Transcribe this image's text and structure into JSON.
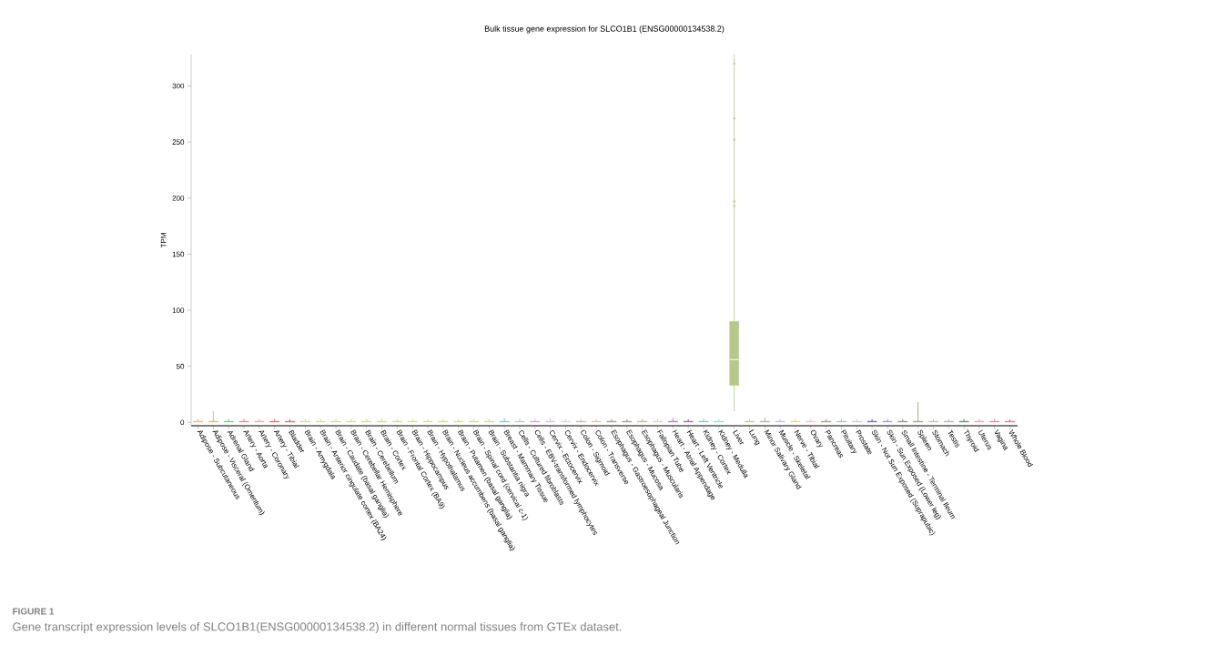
{
  "chart_data": {
    "type": "box",
    "title": "Bulk tissue gene expression for SLCO1B1 (ENSG00000134538.2)",
    "ylabel": "TPM",
    "annotations": [
      "FIGURE 1",
      "Gene transcript expression levels of SLCO1B1(ENSG00000134538.2) in different normal tissues from GTEx dataset."
    ],
    "categories": [
      "Adipose - Subcutaneous",
      "Adipose - Visceral (Omentum)",
      "Adrenal Gland",
      "Artery - Aorta",
      "Artery - Coronary",
      "Artery - Tibial",
      "Bladder",
      "Brain - Amygdala",
      "Brain - Anterior cingulate cortex (BA24)",
      "Brain - Caudate (basal ganglia)",
      "Brain - Cerebellar Hemisphere",
      "Brain - Cerebellum",
      "Brain - Cortex",
      "Brain - Frontal Cortex (BA9)",
      "Brain - Hippocampus",
      "Brain - Hypothalamus",
      "Brain - Nucleus accumbens (basal ganglia)",
      "Brain - Putamen (basal ganglia)",
      "Brain - Spinal cord (cervical c-1)",
      "Brain - Substantia nigra",
      "Breast - Mammary Tissue",
      "Cells - Cultured fibroblasts",
      "Cells - EBV-transformed lymphocytes",
      "Cervix - Ectocervix",
      "Cervix - Endocervix",
      "Colon - Sigmoid",
      "Colon - Transverse",
      "Esophagus - Gastroesophageal Junction",
      "Esophagus - Mucosa",
      "Esophagus - Muscularis",
      "Fallopian Tube",
      "Heart - Atrial Appendage",
      "Heart - Left Ventricle",
      "Kidney - Cortex",
      "Kidney - Medulla",
      "Liver",
      "Lung",
      "Minor Salivary Gland",
      "Muscle - Skeletal",
      "Nerve - Tibial",
      "Ovary",
      "Pancreas",
      "Pituitary",
      "Prostate",
      "Skin - Not Sun Exposed (Suprapubic)",
      "Skin - Sun Exposed (Lower leg)",
      "Small Intestine - Terminal Ileum",
      "Spleen",
      "Stomach",
      "Testis",
      "Thyroid",
      "Uterus",
      "Vagina",
      "Whole Blood"
    ],
    "colors": [
      "#f4a460",
      "#f0a030",
      "#4fc35c",
      "#e46a6a",
      "#e89a8a",
      "#e04040",
      "#d04040",
      "#d8d84a",
      "#d8d84a",
      "#d8d84a",
      "#d8d84a",
      "#d8d84a",
      "#d8d84a",
      "#d8d84a",
      "#d8d84a",
      "#d8d84a",
      "#d8d84a",
      "#d8d84a",
      "#d8d84a",
      "#d8d84a",
      "#50c8d0",
      "#a0c0d0",
      "#e080e0",
      "#d8b0d8",
      "#e8c8c8",
      "#c8a880",
      "#e0b880",
      "#a08060",
      "#a08060",
      "#c8a070",
      "#e0c8c8",
      "#b050c8",
      "#8040a0",
      "#40c8c0",
      "#60e0e0",
      "#b5c98a",
      "#a8d060",
      "#90b080",
      "#b0b0e0",
      "#e8d040",
      "#f0b0c0",
      "#a08050",
      "#90c090",
      "#c0c0c0",
      "#4040d0",
      "#8080e0",
      "#708060",
      "#909070",
      "#c0b090",
      "#a0a0a0",
      "#308040",
      "#f080c0",
      "#f06080",
      "#f04080"
    ],
    "boxes": [
      {
        "low": 0,
        "q1": 0,
        "median": 0,
        "q3": 1,
        "high": 3
      },
      {
        "low": 0,
        "q1": 0,
        "median": 0,
        "q3": 1,
        "high": 10
      },
      {
        "low": 0,
        "q1": 0,
        "median": 0,
        "q3": 1,
        "high": 3
      },
      {
        "low": 0,
        "q1": 0,
        "median": 0,
        "q3": 1,
        "high": 3
      },
      {
        "low": 0,
        "q1": 0,
        "median": 0,
        "q3": 1,
        "high": 3
      },
      {
        "low": 0,
        "q1": 0,
        "median": 0,
        "q3": 1,
        "high": 3
      },
      {
        "low": 0,
        "q1": 0,
        "median": 0,
        "q3": 1,
        "high": 3
      },
      {
        "low": 0,
        "q1": 0,
        "median": 0,
        "q3": 1,
        "high": 3
      },
      {
        "low": 0,
        "q1": 0,
        "median": 0,
        "q3": 1,
        "high": 3
      },
      {
        "low": 0,
        "q1": 0,
        "median": 0,
        "q3": 1,
        "high": 3
      },
      {
        "low": 0,
        "q1": 0,
        "median": 0,
        "q3": 1,
        "high": 3
      },
      {
        "low": 0,
        "q1": 0,
        "median": 0,
        "q3": 1,
        "high": 3
      },
      {
        "low": 0,
        "q1": 0,
        "median": 0,
        "q3": 1,
        "high": 3
      },
      {
        "low": 0,
        "q1": 0,
        "median": 0,
        "q3": 1,
        "high": 3
      },
      {
        "low": 0,
        "q1": 0,
        "median": 0,
        "q3": 1,
        "high": 3
      },
      {
        "low": 0,
        "q1": 0,
        "median": 0,
        "q3": 1,
        "high": 3
      },
      {
        "low": 0,
        "q1": 0,
        "median": 0,
        "q3": 1,
        "high": 3
      },
      {
        "low": 0,
        "q1": 0,
        "median": 0,
        "q3": 1,
        "high": 3
      },
      {
        "low": 0,
        "q1": 0,
        "median": 0,
        "q3": 1,
        "high": 3
      },
      {
        "low": 0,
        "q1": 0,
        "median": 0,
        "q3": 1,
        "high": 3
      },
      {
        "low": 0,
        "q1": 0,
        "median": 0,
        "q3": 1,
        "high": 4
      },
      {
        "low": 0,
        "q1": 0,
        "median": 0,
        "q3": 1,
        "high": 3
      },
      {
        "low": 0,
        "q1": 0,
        "median": 0,
        "q3": 1,
        "high": 3
      },
      {
        "low": 0,
        "q1": 0,
        "median": 0,
        "q3": 1,
        "high": 4
      },
      {
        "low": 0,
        "q1": 0,
        "median": 0,
        "q3": 1,
        "high": 3
      },
      {
        "low": 0,
        "q1": 0,
        "median": 0,
        "q3": 1,
        "high": 3
      },
      {
        "low": 0,
        "q1": 0,
        "median": 0,
        "q3": 1,
        "high": 3
      },
      {
        "low": 0,
        "q1": 0,
        "median": 0,
        "q3": 1,
        "high": 3
      },
      {
        "low": 0,
        "q1": 0,
        "median": 0,
        "q3": 1,
        "high": 3
      },
      {
        "low": 0,
        "q1": 0,
        "median": 0,
        "q3": 1,
        "high": 3
      },
      {
        "low": 0,
        "q1": 0,
        "median": 0,
        "q3": 1,
        "high": 3
      },
      {
        "low": 0,
        "q1": 0,
        "median": 0,
        "q3": 1,
        "high": 4
      },
      {
        "low": 0,
        "q1": 0,
        "median": 0,
        "q3": 1,
        "high": 3
      },
      {
        "low": 0,
        "q1": 0,
        "median": 0,
        "q3": 1,
        "high": 3
      },
      {
        "low": 0,
        "q1": 0,
        "median": 0,
        "q3": 1,
        "high": 3
      },
      {
        "low": 10,
        "q1": 33,
        "median": 56,
        "q3": 90,
        "high": 328,
        "outliers": [
          320,
          271,
          252,
          197,
          193
        ]
      },
      {
        "low": 0,
        "q1": 0,
        "median": 0,
        "q3": 1,
        "high": 3
      },
      {
        "low": 0,
        "q1": 0,
        "median": 0,
        "q3": 1,
        "high": 4
      },
      {
        "low": 0,
        "q1": 0,
        "median": 0,
        "q3": 1,
        "high": 3
      },
      {
        "low": 0,
        "q1": 0,
        "median": 0,
        "q3": 1,
        "high": 3
      },
      {
        "low": 0,
        "q1": 0,
        "median": 0,
        "q3": 1,
        "high": 3
      },
      {
        "low": 0,
        "q1": 0,
        "median": 0,
        "q3": 1,
        "high": 3
      },
      {
        "low": 0,
        "q1": 0,
        "median": 0,
        "q3": 1,
        "high": 3
      },
      {
        "low": 0,
        "q1": 0,
        "median": 0,
        "q3": 1,
        "high": 3
      },
      {
        "low": 0,
        "q1": 0,
        "median": 0,
        "q3": 1,
        "high": 3
      },
      {
        "low": 0,
        "q1": 0,
        "median": 0,
        "q3": 1,
        "high": 3
      },
      {
        "low": 0,
        "q1": 0,
        "median": 0,
        "q3": 1,
        "high": 3
      },
      {
        "low": 0,
        "q1": 0,
        "median": 0,
        "q3": 1,
        "high": 18
      },
      {
        "low": 0,
        "q1": 0,
        "median": 0,
        "q3": 1,
        "high": 3
      },
      {
        "low": 0,
        "q1": 0,
        "median": 0,
        "q3": 1,
        "high": 3
      },
      {
        "low": 0,
        "q1": 0,
        "median": 0,
        "q3": 1,
        "high": 3
      },
      {
        "low": 0,
        "q1": 0,
        "median": 0,
        "q3": 1,
        "high": 3
      },
      {
        "low": 0,
        "q1": 0,
        "median": 0,
        "q3": 1,
        "high": 3
      },
      {
        "low": 0,
        "q1": 0,
        "median": 0,
        "q3": 1,
        "high": 3
      }
    ],
    "ylim": [
      -3,
      328
    ],
    "yticks": [
      0,
      50,
      100,
      150,
      200,
      250,
      300
    ]
  }
}
